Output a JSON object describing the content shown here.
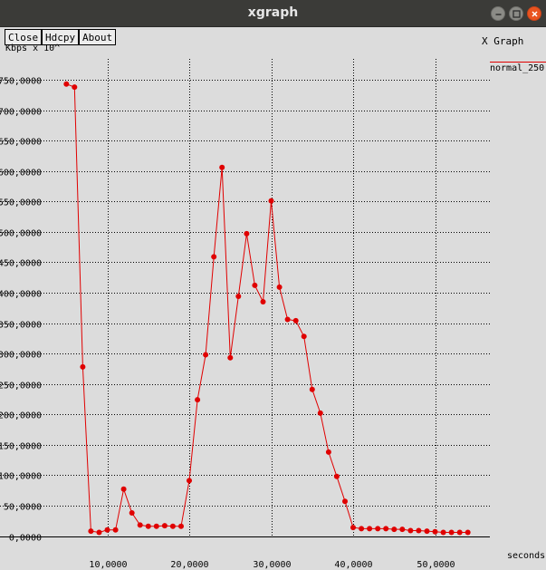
{
  "window": {
    "title": "xgraph"
  },
  "toolbar": {
    "close_label": "Close",
    "hdcpy_label": "Hdcpy",
    "about_label": "About"
  },
  "graph_title": "X Graph",
  "chart_data": {
    "type": "line",
    "ylabel": "Kbps x 10^",
    "xlabel": "seconds",
    "xlim": [
      0,
      60000
    ],
    "ylim": [
      0,
      750000
    ],
    "grid": true,
    "legend_position": "top-right",
    "x_ticks": [
      "10,0000",
      "20,0000",
      "30,0000",
      "40,0000",
      "50,0000"
    ],
    "x_tick_values": [
      10,
      20,
      30,
      40,
      50
    ],
    "y_ticks": [
      "0,0000",
      "50,0000",
      "100,0000",
      "150,0000",
      "200,0000",
      "250,0000",
      "300,0000",
      "350,0000",
      "400,0000",
      "450,0000",
      "500,0000",
      "550,0000",
      "600,0000",
      "650,0000",
      "700,0000",
      "750,0000"
    ],
    "y_tick_values": [
      0,
      50,
      100,
      150,
      200,
      250,
      300,
      350,
      400,
      450,
      500,
      550,
      600,
      650,
      700,
      750
    ],
    "series": [
      {
        "name": "normal_250",
        "color": "#e00000",
        "x": [
          5,
          6,
          7,
          8,
          9,
          10,
          11,
          12,
          13,
          14,
          15,
          16,
          17,
          18,
          19,
          20,
          21,
          22,
          23,
          24,
          25,
          26,
          27,
          28,
          29,
          30,
          31,
          32,
          33,
          34,
          35,
          36,
          37,
          38,
          39,
          40,
          41,
          42,
          43,
          44,
          45,
          46,
          47,
          48,
          49,
          50,
          51,
          52,
          53,
          54
        ],
        "y": [
          743,
          738,
          278,
          8,
          6,
          10,
          10,
          77,
          38,
          18,
          16,
          16,
          17,
          16,
          16,
          91,
          224,
          298,
          459,
          606,
          293,
          394,
          497,
          412,
          385,
          551,
          409,
          356,
          354,
          328,
          241,
          202,
          138,
          98,
          57,
          14,
          12,
          12,
          12,
          12,
          11,
          11,
          9,
          9,
          8,
          7,
          6,
          6,
          6,
          6
        ]
      }
    ]
  }
}
